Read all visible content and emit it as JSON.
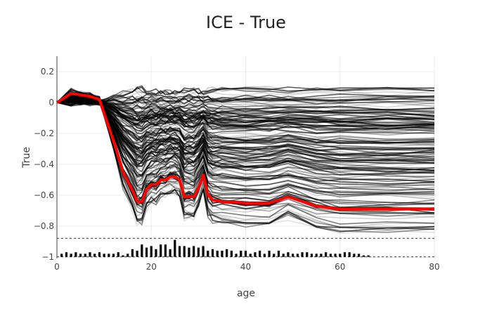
{
  "chart_data": {
    "type": "line",
    "title": "ICE - True",
    "xlabel": "age",
    "ylabel": "True",
    "xlim": [
      0,
      80
    ],
    "ylim": [
      -1.01,
      0.3
    ],
    "xticks": [
      0,
      20,
      40,
      60,
      80
    ],
    "yticks": [
      0.2,
      0,
      -0.2,
      -0.4,
      -0.6,
      -0.8,
      -1
    ],
    "ytick_labels": [
      "0.2",
      "0",
      "−0.2",
      "−0.4",
      "−0.6",
      "−0.8",
      "−1"
    ],
    "grid": true,
    "legend": "none",
    "x": [
      0,
      3,
      5,
      7,
      9,
      12,
      14,
      16,
      17,
      18,
      19,
      20,
      21,
      22,
      23,
      24,
      25,
      26,
      27,
      28,
      29,
      30,
      31,
      32,
      33,
      35,
      40,
      45,
      49,
      55,
      60,
      70,
      80
    ],
    "series": [
      {
        "role": "average",
        "color": "#ff0000",
        "y": [
          0,
          0.06,
          0.05,
          0.04,
          0.02,
          -0.25,
          -0.45,
          -0.57,
          -0.64,
          -0.64,
          -0.56,
          -0.53,
          -0.53,
          -0.5,
          -0.5,
          -0.48,
          -0.48,
          -0.5,
          -0.61,
          -0.61,
          -0.61,
          -0.55,
          -0.47,
          -0.6,
          -0.63,
          -0.64,
          -0.65,
          -0.65,
          -0.61,
          -0.67,
          -0.69,
          -0.69,
          -0.69
        ]
      }
    ],
    "rug_line_y": -0.88,
    "rug_base_y": -1,
    "rug_x": [
      1,
      2,
      3,
      4,
      5,
      6,
      7,
      8,
      9,
      10,
      11,
      12,
      13,
      14,
      15,
      16,
      17,
      18,
      19,
      20,
      21,
      22,
      23,
      24,
      25,
      26,
      27,
      28,
      29,
      30,
      31,
      32,
      33,
      34,
      35,
      36,
      37,
      38,
      39,
      40,
      41,
      42,
      43,
      44,
      45,
      46,
      47,
      48,
      49,
      50,
      51,
      52,
      53,
      54,
      55,
      56,
      57,
      58,
      59,
      60,
      61,
      62,
      63,
      64,
      65,
      66
    ],
    "rug_y": [
      -0.98,
      -0.97,
      -0.98,
      -0.97,
      -0.98,
      -0.98,
      -0.97,
      -0.98,
      -0.97,
      -0.98,
      -0.98,
      -0.98,
      -0.97,
      -0.99,
      -0.98,
      -0.95,
      -0.96,
      -0.92,
      -0.94,
      -0.93,
      -0.95,
      -0.92,
      -0.92,
      -0.95,
      -0.89,
      -0.93,
      -0.93,
      -0.94,
      -0.93,
      -0.94,
      -0.93,
      -0.96,
      -0.95,
      -0.96,
      -0.96,
      -0.95,
      -0.96,
      -0.98,
      -0.96,
      -0.96,
      -0.98,
      -0.97,
      -0.96,
      -0.98,
      -0.96,
      -0.98,
      -0.96,
      -0.98,
      -0.97,
      -0.98,
      -0.98,
      -0.97,
      -0.97,
      -0.98,
      -0.98,
      -0.98,
      -0.97,
      -0.98,
      -0.98,
      -0.98,
      -0.97,
      -0.97,
      -0.98,
      -0.98,
      -0.99,
      -0.99
    ]
  }
}
